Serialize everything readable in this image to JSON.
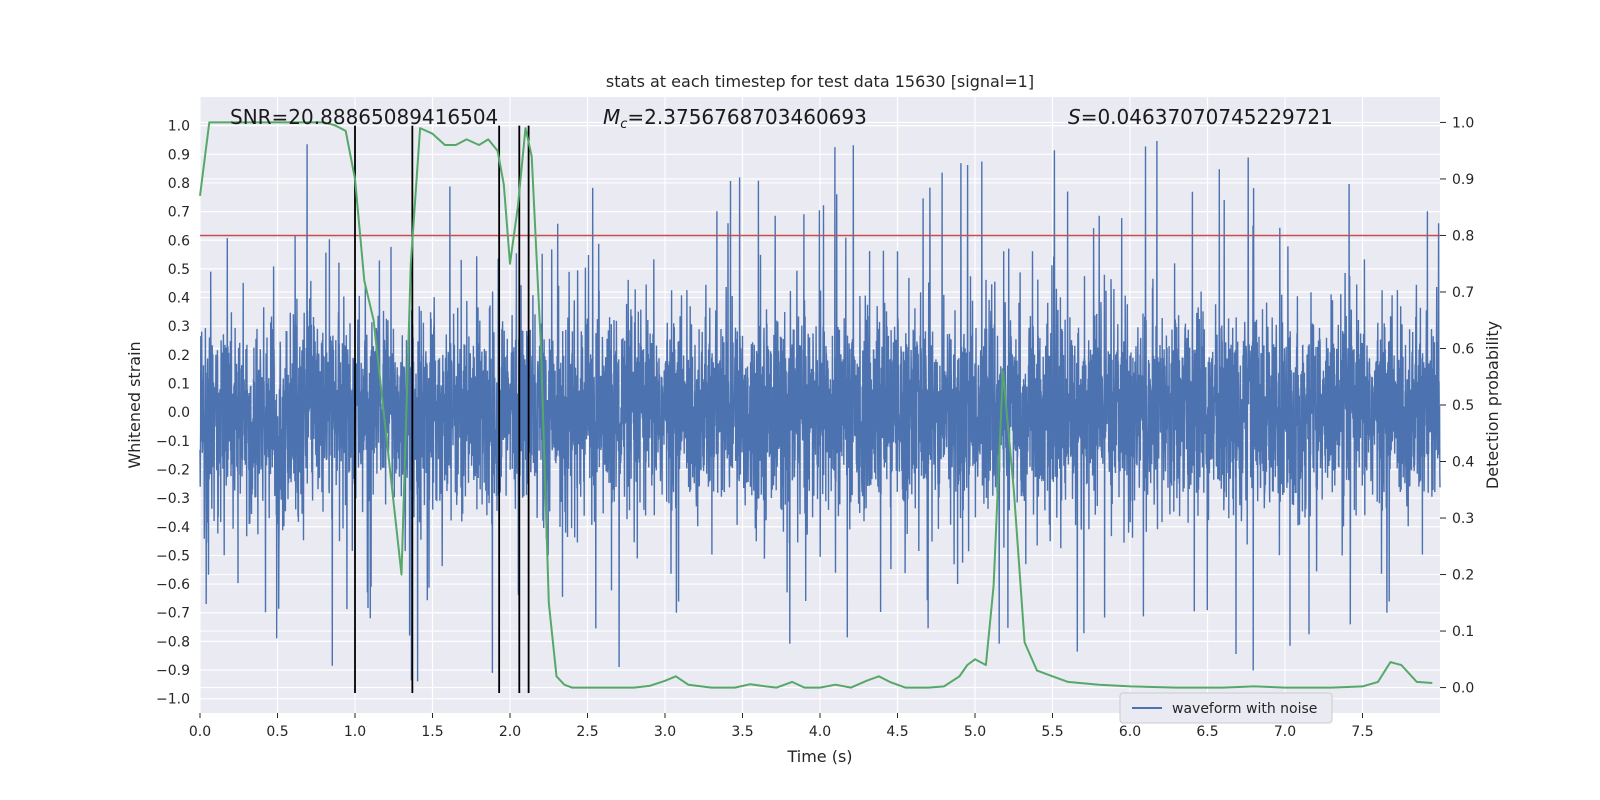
{
  "chart_data": {
    "type": "line",
    "title": "stats at each timestep for test data 15630 [signal=1]",
    "xlabel": "Time (s)",
    "ylabel": "Whitened strain",
    "y2label": "Detection probability",
    "xlim": [
      0.0,
      8.0
    ],
    "ylim": [
      -1.05,
      1.1
    ],
    "y2lim": [
      -0.045,
      1.045
    ],
    "x_ticks": [
      0.0,
      0.5,
      1.0,
      1.5,
      2.0,
      2.5,
      3.0,
      3.5,
      4.0,
      4.5,
      5.0,
      5.5,
      6.0,
      6.5,
      7.0,
      7.5
    ],
    "x_tick_labels": [
      "0.0",
      "0.5",
      "1.0",
      "1.5",
      "2.0",
      "2.5",
      "3.0",
      "3.5",
      "4.0",
      "4.5",
      "5.0",
      "5.5",
      "6.0",
      "6.5",
      "7.0",
      "7.5"
    ],
    "y_ticks": [
      -1.0,
      -0.9,
      -0.8,
      -0.7,
      -0.6,
      -0.5,
      -0.4,
      -0.3,
      -0.2,
      -0.1,
      0.0,
      0.1,
      0.2,
      0.3,
      0.4,
      0.5,
      0.6,
      0.7,
      0.8,
      0.9,
      1.0
    ],
    "y_tick_labels": [
      "−1.0",
      "−0.9",
      "−0.8",
      "−0.7",
      "−0.6",
      "−0.5",
      "−0.4",
      "−0.3",
      "−0.2",
      "−0.1",
      "0.0",
      "0.1",
      "0.2",
      "0.3",
      "0.4",
      "0.5",
      "0.6",
      "0.7",
      "0.8",
      "0.9",
      "1.0"
    ],
    "y2_ticks": [
      0.0,
      0.1,
      0.2,
      0.3,
      0.4,
      0.5,
      0.6,
      0.7,
      0.8,
      0.9,
      1.0
    ],
    "y2_tick_labels": [
      "0.0",
      "0.1",
      "0.2",
      "0.3",
      "0.4",
      "0.5",
      "0.6",
      "0.7",
      "0.8",
      "0.9",
      "1.0"
    ],
    "grid": true,
    "legend_position": "bottom-right",
    "annotations": {
      "snr": "SNR=20.88865089416504",
      "mc_prefix": "M",
      "mc_sub": "c",
      "mc_value": "=2.3756768703460693",
      "s_prefix": "S",
      "s_value": "=0.04637070745229721"
    },
    "series": [
      {
        "name": "waveform with noise",
        "axis": "left",
        "color": "#4c72b0",
        "envelope": "noise band roughly ±0.4 with spikes up to ±1.0"
      },
      {
        "name": "",
        "axis": "right",
        "color": "#55a868",
        "x": [
          0.0,
          0.06,
          0.12,
          0.2,
          0.3,
          0.4,
          0.5,
          0.6,
          0.7,
          0.8,
          0.87,
          0.94,
          1.0,
          1.06,
          1.12,
          1.18,
          1.24,
          1.3,
          1.36,
          1.42,
          1.5,
          1.58,
          1.65,
          1.72,
          1.8,
          1.86,
          1.92,
          1.96,
          2.0,
          2.05,
          2.1,
          2.14,
          2.2,
          2.25,
          2.3,
          2.35,
          2.4,
          2.5,
          2.6,
          2.8,
          2.9,
          3.0,
          3.07,
          3.15,
          3.3,
          3.45,
          3.55,
          3.65,
          3.72,
          3.82,
          3.9,
          4.0,
          4.1,
          4.2,
          4.3,
          4.38,
          4.45,
          4.55,
          4.7,
          4.8,
          4.9,
          4.95,
          5.0,
          5.07,
          5.12,
          5.18,
          5.25,
          5.32,
          5.4,
          5.5,
          5.6,
          5.8,
          6.0,
          6.3,
          6.6,
          6.8,
          7.0,
          7.3,
          7.5,
          7.6,
          7.68,
          7.75,
          7.85,
          7.95
        ],
        "y": [
          0.87,
          1.0,
          1.0,
          1.0,
          1.0,
          1.0,
          1.0,
          1.0,
          1.0,
          1.0,
          0.995,
          0.985,
          0.9,
          0.72,
          0.65,
          0.5,
          0.35,
          0.2,
          0.75,
          0.99,
          0.98,
          0.96,
          0.96,
          0.97,
          0.96,
          0.97,
          0.95,
          0.89,
          0.75,
          0.85,
          0.99,
          0.94,
          0.6,
          0.15,
          0.02,
          0.005,
          0.0,
          0.0,
          0.0,
          0.0,
          0.003,
          0.012,
          0.02,
          0.005,
          0.0,
          0.0,
          0.006,
          0.002,
          0.0,
          0.01,
          0.0,
          0.0,
          0.005,
          0.0,
          0.012,
          0.02,
          0.01,
          0.0,
          0.0,
          0.002,
          0.02,
          0.04,
          0.05,
          0.04,
          0.18,
          0.56,
          0.35,
          0.08,
          0.03,
          0.02,
          0.01,
          0.005,
          0.002,
          0.0,
          0.0,
          0.002,
          0.0,
          0.0,
          0.002,
          0.01,
          0.045,
          0.04,
          0.01,
          0.008
        ]
      }
    ],
    "threshold": {
      "y": 0.8,
      "color": "#c44e52"
    },
    "vlines": {
      "x": [
        1.0,
        1.37,
        1.93,
        2.06,
        2.12
      ],
      "y_range": [
        -0.98,
        1.0
      ],
      "color": "#000000"
    }
  }
}
